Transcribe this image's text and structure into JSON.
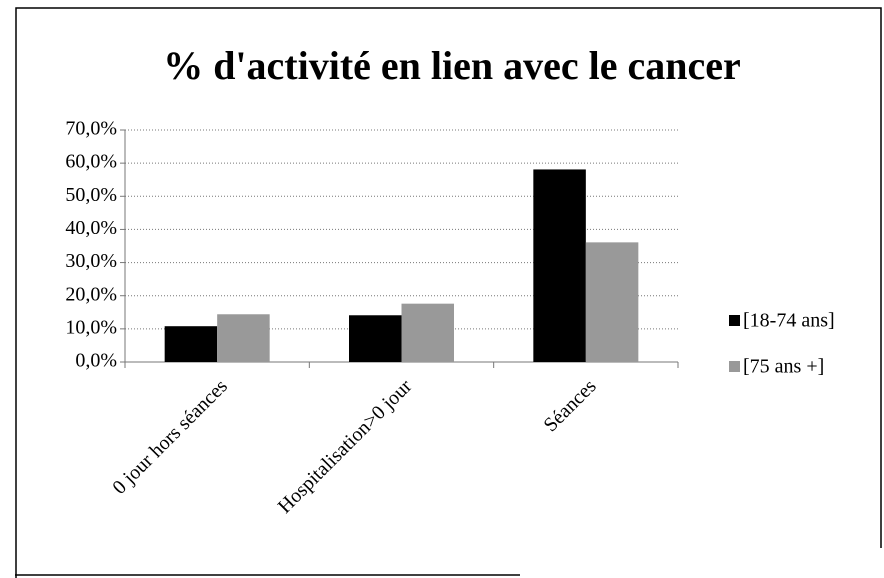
{
  "chart_data": {
    "type": "bar",
    "title": "% d'activité en lien avec le cancer",
    "categories": [
      "0 jour hors séances",
      "Hospitalisation>0 jour",
      "Séances"
    ],
    "series": [
      {
        "name": "[18-74 ans]",
        "color": "#000000",
        "values": [
          10.8,
          14.1,
          58.1
        ]
      },
      {
        "name": "[75 ans +]",
        "color": "#999999",
        "values": [
          14.4,
          17.6,
          36.1
        ]
      }
    ],
    "ylim": [
      0,
      70
    ],
    "yticks": [
      {
        "value": 0,
        "label": "0,0%"
      },
      {
        "value": 10,
        "label": "10,0%"
      },
      {
        "value": 20,
        "label": "20,0%"
      },
      {
        "value": 30,
        "label": "30,0%"
      },
      {
        "value": 40,
        "label": "40,0%"
      },
      {
        "value": 50,
        "label": "50,0%"
      },
      {
        "value": 60,
        "label": "60,0%"
      },
      {
        "value": 70,
        "label": "70,0%"
      }
    ],
    "grid": true,
    "legend": "right"
  }
}
